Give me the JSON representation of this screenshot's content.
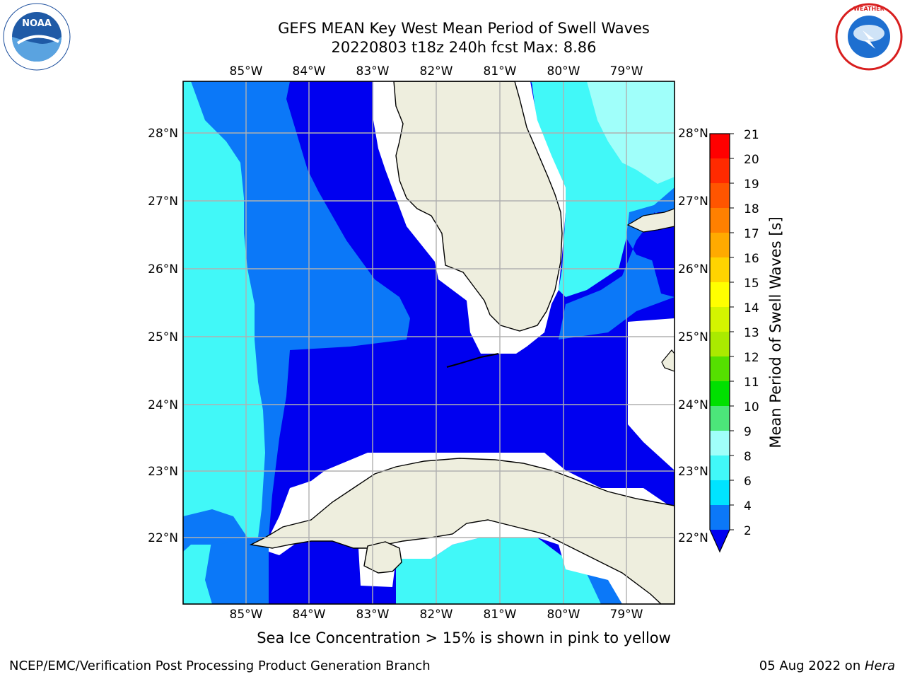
{
  "header": {
    "title_line1": "GEFS MEAN Key West Mean Period of Swell Waves",
    "title_line2": "20220803 t18z 240h fcst   Max: 8.86"
  },
  "logos": {
    "left": {
      "text": "NOAA",
      "ring_text": "NATIONAL OCEANIC AND ATMOSPHERIC ADMINISTRATION · U.S. DEPARTMENT OF COMMERCE"
    },
    "right": {
      "ring_text": "NATIONAL WEATHER SERVICE"
    }
  },
  "map": {
    "lon_labels": [
      "85°W",
      "84°W",
      "83°W",
      "82°W",
      "81°W",
      "80°W",
      "79°W"
    ],
    "lat_labels": [
      "28°N",
      "27°N",
      "26°N",
      "25°N",
      "24°N",
      "23°N",
      "22°N"
    ]
  },
  "colorbar": {
    "label": "Mean Period of Swell Waves [s]",
    "ticks": [
      "21",
      "20",
      "19",
      "18",
      "17",
      "16",
      "15",
      "14",
      "13",
      "12",
      "11",
      "10",
      "9",
      "8",
      "6",
      "4",
      "2"
    ],
    "colors": {
      "bin_2_4": "#0b78f8",
      "bin_4_6": "#00e4ff",
      "bin_6_8": "#41f8f8",
      "bin_8_9": "#a0fffa",
      "deep": "#0000f0",
      "land": "#eeeede"
    }
  },
  "note": "Sea Ice Concentration > 15% is shown in pink to yellow",
  "footer": {
    "left": "NCEP/EMC/Verification Post Processing Product Generation Branch",
    "date": "05 Aug 2022 on ",
    "host": "Hera"
  }
}
